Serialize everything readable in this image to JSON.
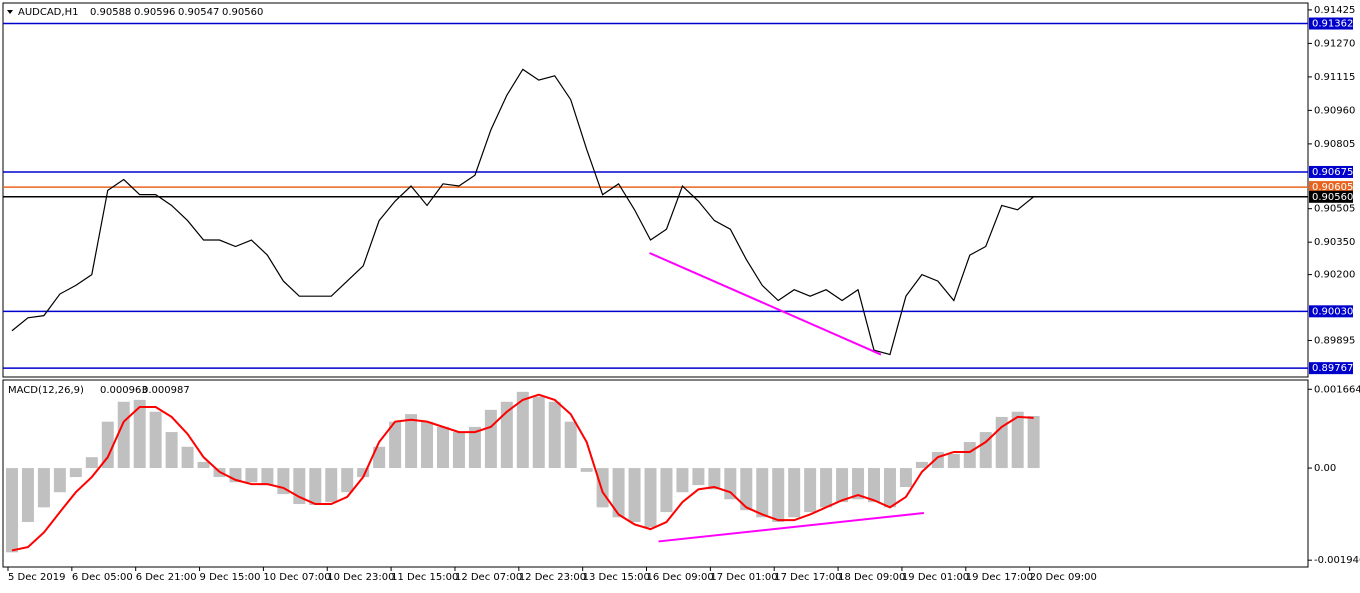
{
  "chart_data": [
    {
      "type": "line",
      "title": "AUDCAD,H1",
      "ohlc_labels": [
        "0.90588",
        "0.90596",
        "0.90547",
        "0.90560"
      ],
      "xlim": [
        -1.25,
        325.75
      ],
      "ylim": [
        0.89726,
        0.91457
      ],
      "yticks": [
        0.91425,
        {
          "value": 0.9127,
          "label": "0.91270"
        },
        0.91115,
        {
          "value": 0.9096,
          "label": "0.90960"
        },
        0.90805,
        0.90505,
        {
          "value": 0.9035,
          "label": "0.90350"
        },
        {
          "value": 0.902,
          "label": "0.90200"
        },
        0.89895
      ],
      "levels": [
        {
          "value": 0.91362,
          "label": "0.91362",
          "color": "#0000cd"
        },
        {
          "value": 0.90675,
          "label": "0.90675",
          "color": "#0000cd"
        },
        {
          "value": 0.90605,
          "label": "0.90605",
          "color": "#e8641e"
        },
        {
          "value": 0.9056,
          "label": "0.90560",
          "color": "#000000"
        },
        {
          "value": 0.9003,
          "label": "0.90030",
          "color": "#0000cd"
        },
        {
          "value": 0.89767,
          "label": "0.89767",
          "color": "#0000cd"
        }
      ],
      "series": [
        {
          "type": "line",
          "color": "#000000",
          "x": [
            1,
            5,
            9,
            13,
            17,
            21,
            25,
            29,
            33,
            37,
            41,
            45,
            49,
            53,
            57,
            61,
            65,
            69,
            73,
            77,
            81,
            85,
            89,
            93,
            97,
            101,
            105,
            109,
            113,
            117,
            121,
            125,
            129,
            133,
            137,
            141,
            145,
            149,
            153,
            157,
            161,
            165,
            169,
            173,
            177,
            181,
            185,
            189,
            193,
            197,
            201,
            205,
            209,
            213,
            217,
            221,
            225,
            229,
            233,
            237,
            241,
            245,
            249,
            253,
            257
          ],
          "values": [
            0.8994,
            0.9,
            0.9001,
            0.9011,
            0.9015,
            0.902,
            0.9059,
            0.9064,
            0.9057,
            0.9057,
            0.9052,
            0.9045,
            0.9036,
            0.9036,
            0.9033,
            0.9036,
            0.9029,
            0.9017,
            0.901,
            0.901,
            0.901,
            0.9017,
            0.9024,
            0.9045,
            0.9054,
            0.9061,
            0.9052,
            0.9062,
            0.9061,
            0.9066,
            0.9087,
            0.9103,
            0.9115,
            0.911,
            0.9112,
            0.9101,
            0.9078,
            0.9057,
            0.9062,
            0.905,
            0.9036,
            0.9041,
            0.9061,
            0.9054,
            0.9045,
            0.9041,
            0.9027,
            0.9015,
            0.9008,
            0.9013,
            0.901,
            0.9013,
            0.9008,
            0.9013,
            0.8985,
            0.8983,
            0.901,
            0.902,
            0.9017,
            0.9008,
            0.9029,
            0.9033,
            0.9052,
            0.905,
            0.9056
          ]
        }
      ],
      "trendlines": [
        {
          "x": [
            160.75,
            218.75
          ],
          "values": [
            0.903,
            0.8983
          ],
          "color": "#ff00ff"
        }
      ]
    },
    {
      "type": "line",
      "title": "MACD(12,26,9)",
      "indicator_values": [
        0.000963,
        0.000987
      ],
      "xlim": [
        -1.25,
        325.75
      ],
      "ylim": [
        -0.00209,
        0.00186
      ],
      "yticks": [
        0.001664,
        {
          "value": 0,
          "label": "0.00"
        },
        -0.001946
      ],
      "xticks": [
        {
          "value": 0,
          "label": "5 Dec 2019"
        },
        {
          "value": 16,
          "label": "6 Dec 05:00"
        },
        {
          "value": 32,
          "label": "6 Dec 21:00"
        },
        {
          "value": 48,
          "label": "9 Dec 15:00"
        },
        {
          "value": 64,
          "label": "10 Dec 07:00"
        },
        {
          "value": 80,
          "label": "10 Dec 23:00"
        },
        {
          "value": 96,
          "label": "11 Dec 15:00"
        },
        {
          "value": 112,
          "label": "12 Dec 07:00"
        },
        {
          "value": 128,
          "label": "12 Dec 23:00"
        },
        {
          "value": 144,
          "label": "13 Dec 15:00"
        },
        {
          "value": 160,
          "label": "16 Dec 09:00"
        },
        {
          "value": 176,
          "label": "17 Dec 01:00"
        },
        {
          "value": 192,
          "label": "17 Dec 17:00"
        },
        {
          "value": 208,
          "label": "18 Dec 09:00"
        },
        {
          "value": 224,
          "label": "19 Dec 01:00"
        },
        {
          "value": 240,
          "label": "19 Dec 17:00"
        },
        {
          "value": 256,
          "label": "20 Dec 09:00"
        }
      ],
      "series": [
        {
          "type": "bar",
          "color": "#c0c0c0",
          "x": [
            1,
            5,
            9,
            13,
            17,
            21,
            25,
            29,
            33,
            37,
            41,
            45,
            49,
            53,
            57,
            61,
            65,
            69,
            73,
            77,
            81,
            85,
            89,
            93,
            97,
            101,
            105,
            109,
            113,
            117,
            121,
            125,
            129,
            133,
            137,
            141,
            145,
            149,
            153,
            157,
            161,
            165,
            169,
            173,
            177,
            181,
            185,
            189,
            193,
            197,
            201,
            205,
            209,
            213,
            217,
            221,
            225,
            229,
            233,
            237,
            241,
            245,
            249,
            253,
            257
          ],
          "values": [
            -0.00178,
            -0.00114,
            -0.00083,
            -0.00051,
            -0.00019,
            0.00023,
            0.00098,
            0.0014,
            0.00144,
            0.00119,
            0.00076,
            0.00045,
            0.00013,
            -0.00019,
            -0.0003,
            -0.0003,
            -0.00036,
            -0.00055,
            -0.00076,
            -0.00078,
            -0.00072,
            -0.00051,
            -0.00019,
            0.00045,
            0.00098,
            0.00114,
            0.00098,
            0.00087,
            0.00076,
            0.00087,
            0.00123,
            0.0014,
            0.00161,
            0.00151,
            0.0014,
            0.00098,
            -8e-05,
            -0.00083,
            -0.00104,
            -0.00114,
            -0.00125,
            -0.00093,
            -0.00051,
            -0.00036,
            -0.00045,
            -0.00066,
            -0.00089,
            -0.00104,
            -0.00114,
            -0.00104,
            -0.00093,
            -0.00083,
            -0.00072,
            -0.00066,
            -0.00072,
            -0.00083,
            -0.0004,
            0.00013,
            0.00034,
            0.0003,
            0.00055,
            0.00076,
            0.00108,
            0.00119,
            0.0011
          ]
        },
        {
          "type": "line",
          "color": "#ff0000",
          "x": [
            1,
            5,
            9,
            13,
            17,
            21,
            25,
            29,
            33,
            37,
            41,
            45,
            49,
            53,
            57,
            61,
            65,
            69,
            73,
            77,
            81,
            85,
            89,
            93,
            97,
            101,
            105,
            109,
            113,
            117,
            121,
            125,
            129,
            133,
            137,
            141,
            145,
            149,
            153,
            157,
            161,
            165,
            169,
            173,
            177,
            181,
            185,
            189,
            193,
            197,
            201,
            205,
            209,
            213,
            217,
            221,
            225,
            229,
            233,
            237,
            241,
            245,
            249,
            253,
            257
          ],
          "values": [
            -0.00174,
            -0.00167,
            -0.00136,
            -0.00093,
            -0.00051,
            -0.00019,
            0.00023,
            0.00098,
            0.00129,
            0.00129,
            0.00108,
            0.00072,
            0.00023,
            -8e-05,
            -0.00025,
            -0.00034,
            -0.00034,
            -0.00042,
            -0.00061,
            -0.00076,
            -0.00076,
            -0.00061,
            -0.00019,
            0.00055,
            0.00098,
            0.00102,
            0.00098,
            0.00087,
            0.00076,
            0.00076,
            0.00087,
            0.00119,
            0.00144,
            0.00155,
            0.00144,
            0.00114,
            0.00055,
            -0.00051,
            -0.00098,
            -0.00119,
            -0.00129,
            -0.00114,
            -0.00072,
            -0.00045,
            -0.0004,
            -0.00051,
            -0.00083,
            -0.00098,
            -0.0011,
            -0.0011,
            -0.00098,
            -0.00083,
            -0.00068,
            -0.00057,
            -0.00068,
            -0.00083,
            -0.00061,
            -8e-05,
            0.00023,
            0.00034,
            0.00034,
            0.00055,
            0.00087,
            0.00108,
            0.00106
          ]
        }
      ],
      "trendlines": [
        {
          "x": [
            163,
            229.5
          ],
          "values": [
            -0.00155,
            -0.00095
          ],
          "color": "#ff00ff"
        }
      ]
    }
  ]
}
